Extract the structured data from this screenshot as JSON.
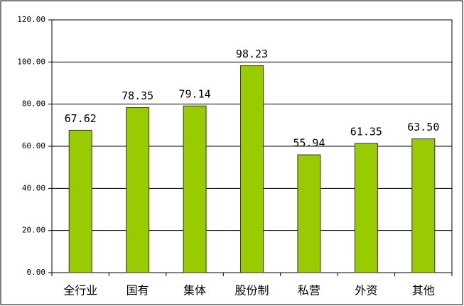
{
  "chart_data": {
    "type": "bar",
    "categories": [
      "全行业",
      "国有",
      "集体",
      "股份制",
      "私营",
      "外资",
      "其他"
    ],
    "values": [
      67.62,
      78.35,
      79.14,
      98.23,
      55.94,
      61.35,
      63.5
    ],
    "value_labels": [
      "67.62",
      "78.35",
      "79.14",
      "98.23",
      "55.94",
      "61.35",
      "63.50"
    ],
    "color": "#99cc00",
    "ylim": [
      0,
      120
    ],
    "yticks": [
      {
        "value": 0,
        "label": "0.00"
      },
      {
        "value": 20,
        "label": "20.00"
      },
      {
        "value": 40,
        "label": "40.00"
      },
      {
        "value": 60,
        "label": "60.00"
      },
      {
        "value": 80,
        "label": "80.00"
      },
      {
        "value": 100,
        "label": "100.00"
      },
      {
        "value": 120,
        "label": "120.00"
      }
    ],
    "grid": true
  }
}
